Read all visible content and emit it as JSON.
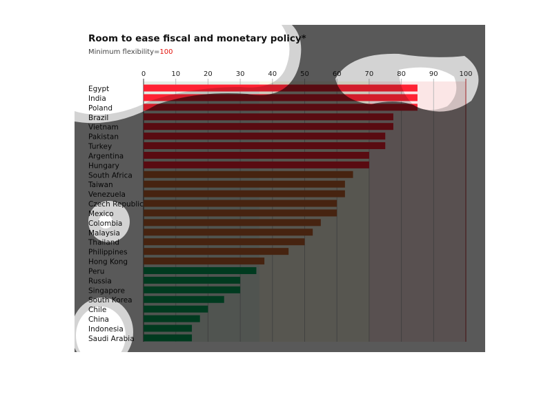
{
  "chart_data": {
    "type": "bar",
    "orientation": "horizontal",
    "title": "Room to ease fiscal and monetary policy*",
    "subtitle_prefix": "Minimum flexibility=",
    "subtitle_value": "100",
    "xlim": [
      0,
      100
    ],
    "xticks": [
      "0",
      "10",
      "20",
      "30",
      "40",
      "50",
      "60",
      "70",
      "80",
      "90",
      "100"
    ],
    "categories": [
      "Egypt",
      "India",
      "Poland",
      "Brazil",
      "Vietnam",
      "Pakistan",
      "Turkey",
      "Argentina",
      "Hungary",
      "South Africa",
      "Taiwan",
      "Venezuela",
      "Czech Republic",
      "Mexico",
      "Colombia",
      "Malaysia",
      "Thailand",
      "Philippines",
      "Hong Kong",
      "Peru",
      "Russia",
      "Singapore",
      "South Korea",
      "Chile",
      "China",
      "Indonesia",
      "Saudi Arabia"
    ],
    "values": [
      85,
      85,
      85,
      77.5,
      77.5,
      75,
      75,
      70,
      70,
      65,
      62.5,
      62.5,
      60,
      60,
      55,
      52.5,
      50,
      45,
      37.5,
      35,
      30,
      30,
      25,
      20,
      17.5,
      15,
      15
    ],
    "groups": [
      "red",
      "red",
      "red",
      "red",
      "red",
      "red",
      "red",
      "red",
      "red",
      "brown",
      "brown",
      "brown",
      "brown",
      "brown",
      "brown",
      "brown",
      "brown",
      "brown",
      "brown",
      "green",
      "green",
      "green",
      "green",
      "green",
      "green",
      "green",
      "green"
    ],
    "colors": {
      "red": "#ff2233",
      "brown": "#c8652f",
      "green": "#00a65a",
      "band_green": "#e4efe6",
      "band_olive": "#f8f6e4",
      "band_red": "#fbe6e6",
      "accent": "#e3120b"
    },
    "bands": [
      [
        0,
        36,
        "band_green"
      ],
      [
        36,
        70,
        "band_olive"
      ],
      [
        70,
        100,
        "band_red"
      ]
    ]
  }
}
